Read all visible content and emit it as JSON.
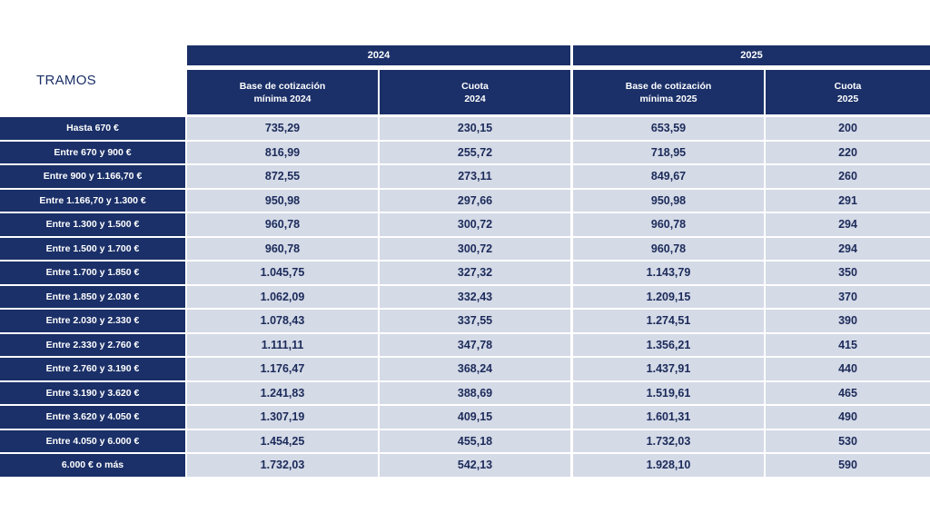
{
  "header": {
    "tramos_label": "TRAMOS",
    "year_2024": "2024",
    "year_2025": "2025",
    "col_base_2024": [
      "Base de cotización",
      "mínima 2024"
    ],
    "col_cuota_2024": [
      "Cuota",
      "2024"
    ],
    "col_base_2025": [
      "Base de cotización",
      "mínima 2025"
    ],
    "col_cuota_2025": [
      "Cuota",
      "2025"
    ]
  },
  "rows": [
    {
      "tramo": "Hasta 670 €",
      "base_2024": "735,29",
      "cuota_2024": "230,15",
      "base_2025": "653,59",
      "cuota_2025": "200"
    },
    {
      "tramo": "Entre 670 y 900 €",
      "base_2024": "816,99",
      "cuota_2024": "255,72",
      "base_2025": "718,95",
      "cuota_2025": "220"
    },
    {
      "tramo": "Entre 900 y 1.166,70 €",
      "base_2024": "872,55",
      "cuota_2024": "273,11",
      "base_2025": "849,67",
      "cuota_2025": "260"
    },
    {
      "tramo": "Entre 1.166,70 y 1.300 €",
      "base_2024": "950,98",
      "cuota_2024": "297,66",
      "base_2025": "950,98",
      "cuota_2025": "291"
    },
    {
      "tramo": "Entre 1.300 y 1.500 €",
      "base_2024": "960,78",
      "cuota_2024": "300,72",
      "base_2025": "960,78",
      "cuota_2025": "294"
    },
    {
      "tramo": "Entre 1.500 y 1.700 €",
      "base_2024": "960,78",
      "cuota_2024": "300,72",
      "base_2025": "960,78",
      "cuota_2025": "294"
    },
    {
      "tramo": "Entre 1.700 y 1.850 €",
      "base_2024": "1.045,75",
      "cuota_2024": "327,32",
      "base_2025": "1.143,79",
      "cuota_2025": "350"
    },
    {
      "tramo": "Entre 1.850 y 2.030 €",
      "base_2024": "1.062,09",
      "cuota_2024": "332,43",
      "base_2025": "1.209,15",
      "cuota_2025": "370"
    },
    {
      "tramo": "Entre 2.030 y 2.330 €",
      "base_2024": "1.078,43",
      "cuota_2024": "337,55",
      "base_2025": "1.274,51",
      "cuota_2025": "390"
    },
    {
      "tramo": "Entre 2.330 y 2.760 €",
      "base_2024": "1.111,11",
      "cuota_2024": "347,78",
      "base_2025": "1.356,21",
      "cuota_2025": "415"
    },
    {
      "tramo": "Entre 2.760 y 3.190 €",
      "base_2024": "1.176,47",
      "cuota_2024": "368,24",
      "base_2025": "1.437,91",
      "cuota_2025": "440"
    },
    {
      "tramo": "Entre 3.190 y 3.620 €",
      "base_2024": "1.241,83",
      "cuota_2024": "388,69",
      "base_2025": "1.519,61",
      "cuota_2025": "465"
    },
    {
      "tramo": "Entre 3.620 y 4.050 €",
      "base_2024": "1.307,19",
      "cuota_2024": "409,15",
      "base_2025": "1.601,31",
      "cuota_2025": "490"
    },
    {
      "tramo": "Entre 4.050 y 6.000 €",
      "base_2024": "1.454,25",
      "cuota_2024": "455,18",
      "base_2025": "1.732,03",
      "cuota_2025": "530"
    },
    {
      "tramo": "6.000 € o más",
      "base_2024": "1.732,03",
      "cuota_2024": "542,13",
      "base_2025": "1.928,10",
      "cuota_2025": "590"
    }
  ],
  "colors": {
    "header_bg": "#1b3068",
    "cell_bg": "#d4dae6",
    "text_dark": "#1b2a5a"
  }
}
